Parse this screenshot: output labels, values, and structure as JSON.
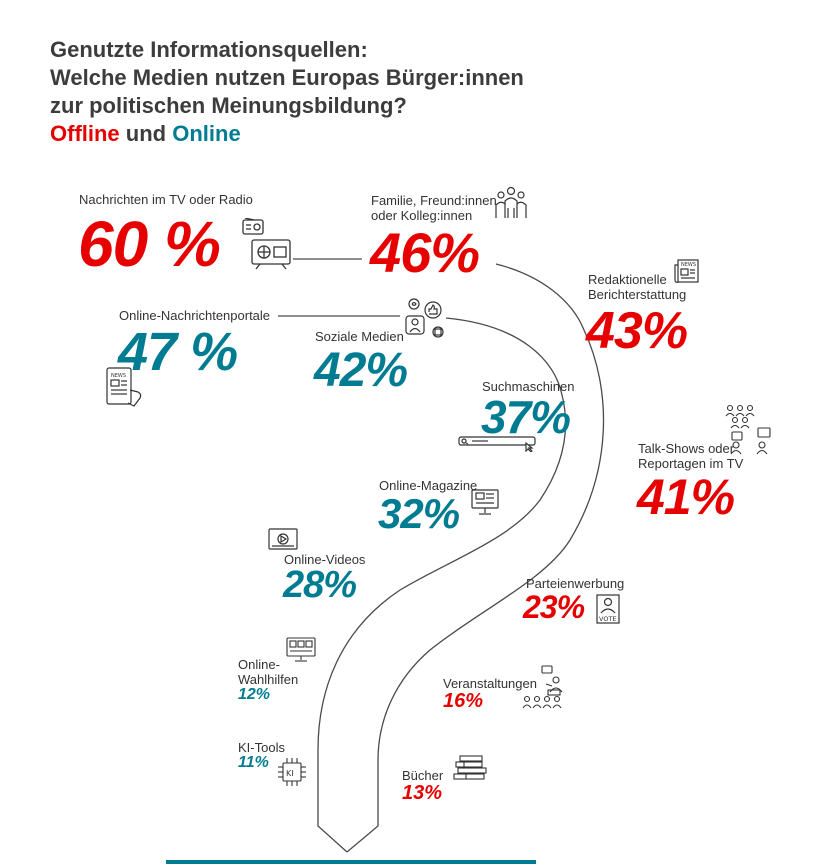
{
  "title": {
    "line1": "Genutzte Informationsquellen:",
    "line2": "Welche Medien nutzen Europas Bürger:innen",
    "line3": "zur politischen Meinungsbildung?",
    "offline": "Offline",
    "und": "und",
    "online": "Online"
  },
  "colors": {
    "offline": "#e60000",
    "online": "#007c92",
    "text": "#333333",
    "line": "#4a4a4a"
  },
  "chart_data": {
    "type": "infographic-ranking",
    "title": "Genutzte Informationsquellen: Welche Medien nutzen Europas Bürger:innen zur politischen Meinungsbildung?",
    "unit": "%",
    "legend": {
      "Offline": "#e60000",
      "Online": "#007c92"
    },
    "items": [
      {
        "label": "Nachrichten im TV oder Radio",
        "value": 60,
        "display": "60 %",
        "category": "offline",
        "icon": "tv-radio-icon"
      },
      {
        "label": "Familie, Freund:innen oder Kolleg:innen",
        "value": 46,
        "display": "46%",
        "category": "offline",
        "icon": "people-group-icon"
      },
      {
        "label": "Online-Nachrichtenportale",
        "value": 47,
        "display": "47 %",
        "category": "online",
        "icon": "tablet-news-icon"
      },
      {
        "label": "Redaktionelle Berichterstattung",
        "value": 43,
        "display": "43%",
        "category": "offline",
        "icon": "newspaper-icon"
      },
      {
        "label": "Soziale Medien",
        "value": 42,
        "display": "42%",
        "category": "online",
        "icon": "social-media-icon"
      },
      {
        "label": "Talk-Shows oder Reportagen im TV",
        "value": 41,
        "display": "41%",
        "category": "offline",
        "icon": "talkshow-icon"
      },
      {
        "label": "Suchmaschinen",
        "value": 37,
        "display": "37%",
        "category": "online",
        "icon": "search-bar-icon"
      },
      {
        "label": "Online-Magazine",
        "value": 32,
        "display": "32%",
        "category": "online",
        "icon": "monitor-magazine-icon"
      },
      {
        "label": "Online-Videos",
        "value": 28,
        "display": "28%",
        "category": "online",
        "icon": "video-player-icon"
      },
      {
        "label": "Parteienwerbung",
        "value": 23,
        "display": "23%",
        "category": "offline",
        "icon": "vote-poster-icon"
      },
      {
        "label": "Veranstaltungen",
        "value": 16,
        "display": "16%",
        "category": "offline",
        "icon": "event-audience-icon"
      },
      {
        "label": "Bücher",
        "value": 13,
        "display": "13%",
        "category": "offline",
        "icon": "books-icon"
      },
      {
        "label": "Online-Wahlhilfen",
        "value": 12,
        "display": "12%",
        "category": "online",
        "icon": "ballot-screen-icon"
      },
      {
        "label": "KI-Tools",
        "value": 11,
        "display": "11%",
        "category": "online",
        "icon": "ai-chip-icon"
      }
    ]
  }
}
